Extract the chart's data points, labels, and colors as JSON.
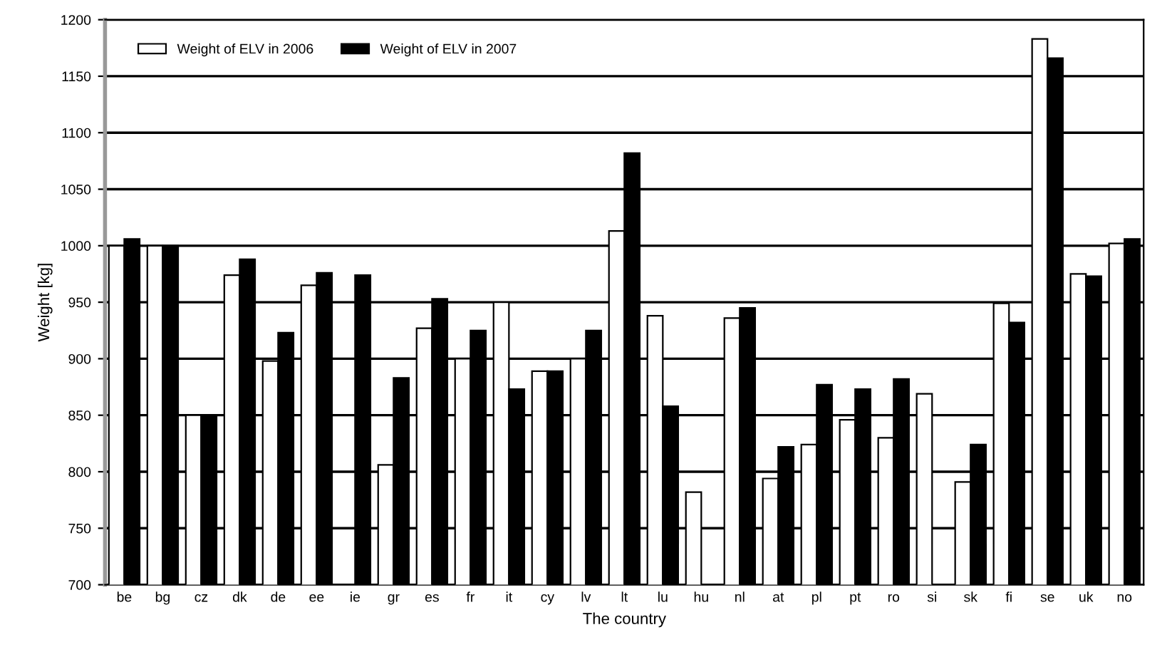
{
  "chart_data": {
    "type": "bar",
    "xlabel": "The country",
    "ylabel": "Weight [kg]",
    "categories": [
      "be",
      "bg",
      "cz",
      "dk",
      "de",
      "ee",
      "ie",
      "gr",
      "es",
      "fr",
      "it",
      "cy",
      "lv",
      "lt",
      "lu",
      "hu",
      "nl",
      "at",
      "pl",
      "pt",
      "ro",
      "si",
      "sk",
      "fi",
      "se",
      "uk",
      "no"
    ],
    "series": [
      {
        "name": "Weight of ELV in 2006",
        "color": "#ffffff",
        "values": [
          1000,
          1000,
          850,
          974,
          898,
          965,
          null,
          806,
          927,
          900,
          950,
          889,
          900,
          1013,
          938,
          782,
          936,
          794,
          824,
          846,
          830,
          869,
          791,
          949,
          1183,
          975,
          1002
        ]
      },
      {
        "name": "Weight of ELV in 2007",
        "color": "#000000",
        "values": [
          1006,
          1000,
          850,
          988,
          923,
          976,
          974,
          883,
          953,
          925,
          873,
          889,
          925,
          1082,
          858,
          null,
          945,
          822,
          877,
          873,
          882,
          null,
          824,
          932,
          1166,
          973,
          1006
        ]
      }
    ],
    "ylim": [
      700,
      1200
    ],
    "yticks": [
      700,
      750,
      800,
      850,
      900,
      950,
      1000,
      1050,
      1100,
      1150,
      1200
    ],
    "grid": "y",
    "legend": "top left"
  }
}
